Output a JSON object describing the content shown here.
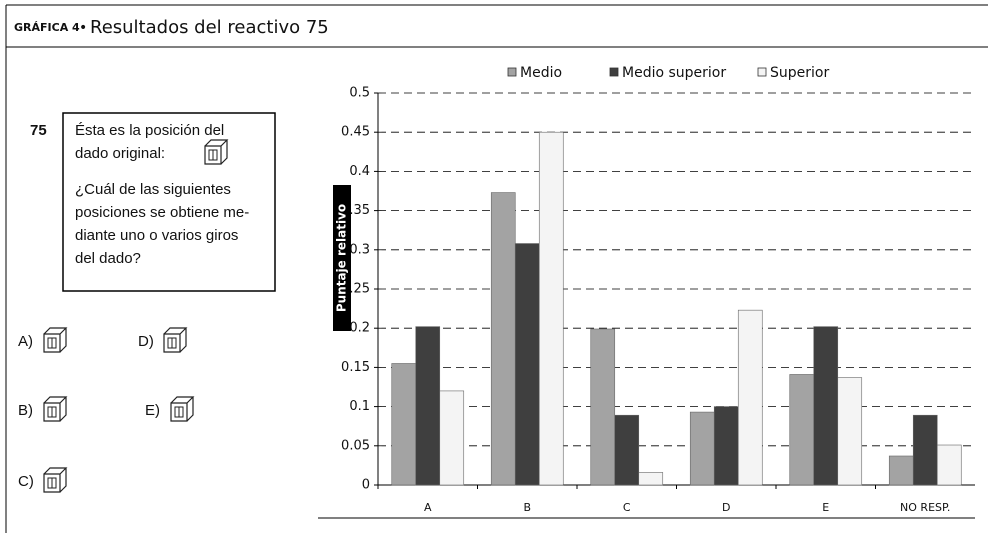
{
  "header": {
    "label": "GRÁFICA 4",
    "separator": "•",
    "title": "Resultados del reactivo 75"
  },
  "question": {
    "number": "75",
    "lines": [
      "Ésta es la posición del",
      "dado original:",
      "¿Cuál de las siguientes",
      "posiciones se obtiene me-",
      "diante uno o varios giros",
      "del dado?"
    ],
    "options": [
      "A)",
      "B)",
      "C)",
      "D)",
      "E)"
    ]
  },
  "chart_data": {
    "type": "bar",
    "y_label": "Puntaje relativo",
    "categories": [
      "A",
      "B",
      "C",
      "D",
      "E",
      "NO RESP."
    ],
    "series": [
      {
        "name": "Medio",
        "color": "#a3a3a3",
        "values": [
          0.155,
          0.373,
          0.199,
          0.093,
          0.141,
          0.037
        ]
      },
      {
        "name": "Medio superior",
        "color": "#3f3f3f",
        "values": [
          0.202,
          0.308,
          0.089,
          0.1,
          0.202,
          0.089
        ]
      },
      {
        "name": "Superior",
        "color": "#f4f4f4",
        "values": [
          0.12,
          0.45,
          0.016,
          0.223,
          0.137,
          0.051
        ]
      }
    ],
    "ylim": [
      0,
      0.5
    ],
    "yticks": [
      0,
      0.05,
      0.1,
      0.15,
      0.2,
      0.25,
      0.3,
      0.35,
      0.4,
      0.45,
      0.5
    ],
    "grid": true
  }
}
